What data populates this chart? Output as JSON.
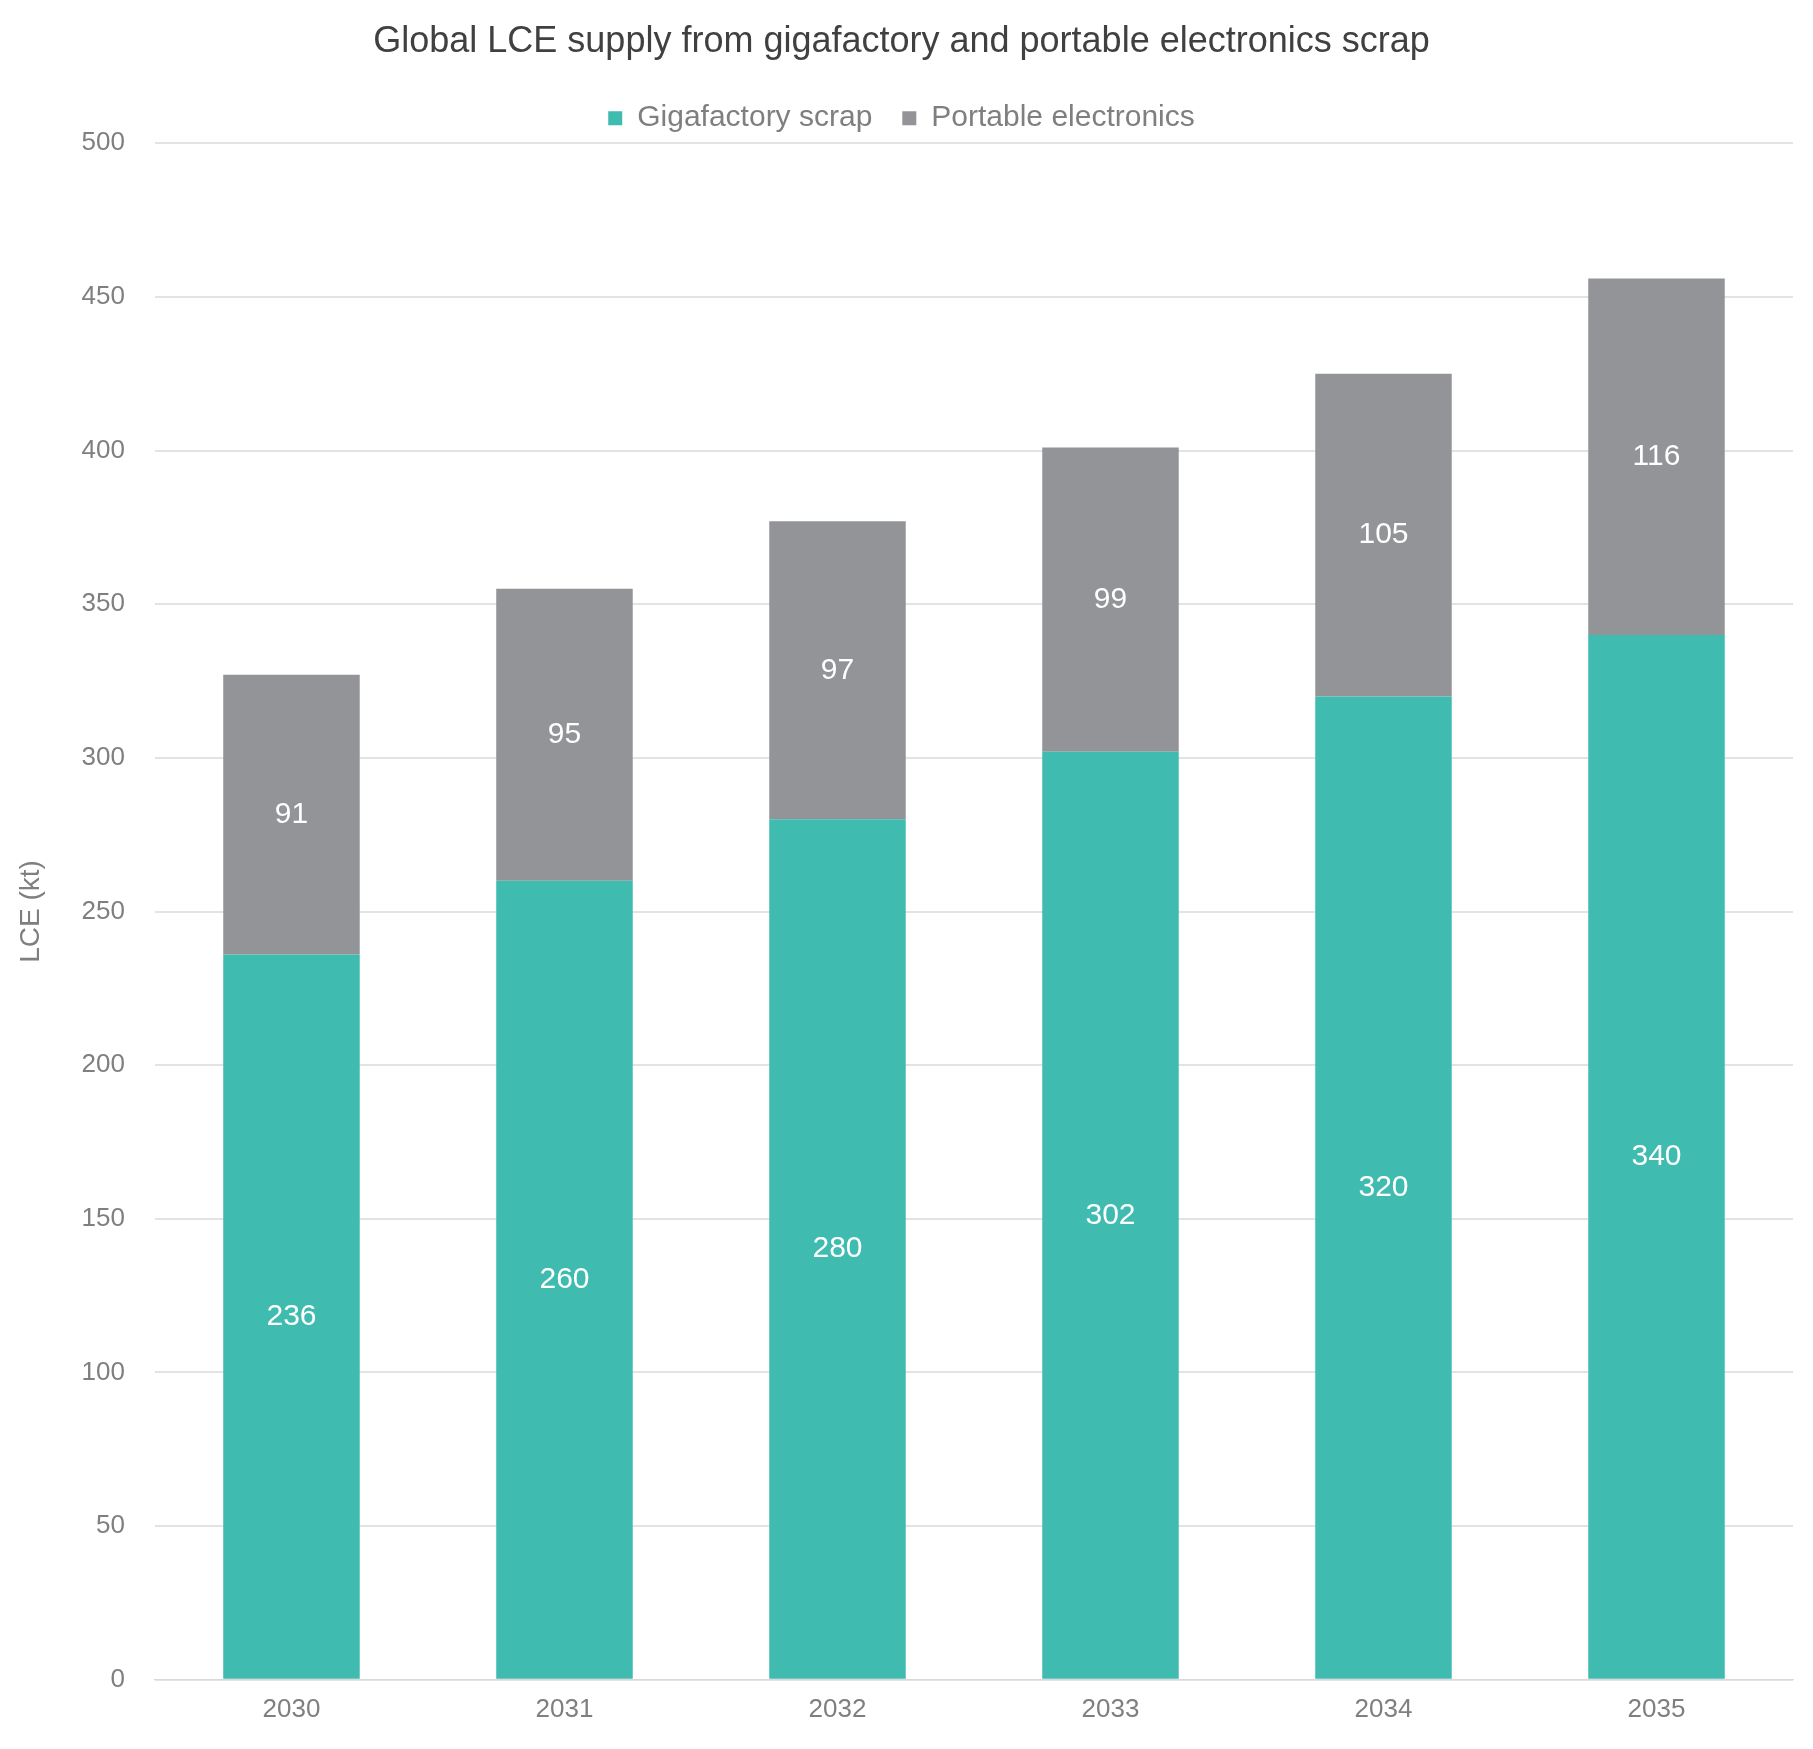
{
  "chart_data": {
    "type": "bar",
    "title": "Global LCE supply from gigafactory and portable electronics scrap",
    "ylabel": "LCE (kt)",
    "categories": [
      "2030",
      "2031",
      "2032",
      "2033",
      "2034",
      "2035"
    ],
    "stacked": true,
    "series": [
      {
        "name": "Gigafactory scrap",
        "color": "#3fbbb0",
        "values": [
          236,
          260,
          280,
          302,
          320,
          340
        ]
      },
      {
        "name": "Portable electronics",
        "color": "#939497",
        "values": [
          91,
          95,
          97,
          99,
          105,
          116
        ]
      }
    ],
    "ylim": [
      0,
      500
    ],
    "yticks": [
      0,
      50,
      100,
      150,
      200,
      250,
      300,
      350,
      400,
      450,
      500
    ],
    "grid": "y",
    "legend": "top",
    "data_labels": true
  }
}
